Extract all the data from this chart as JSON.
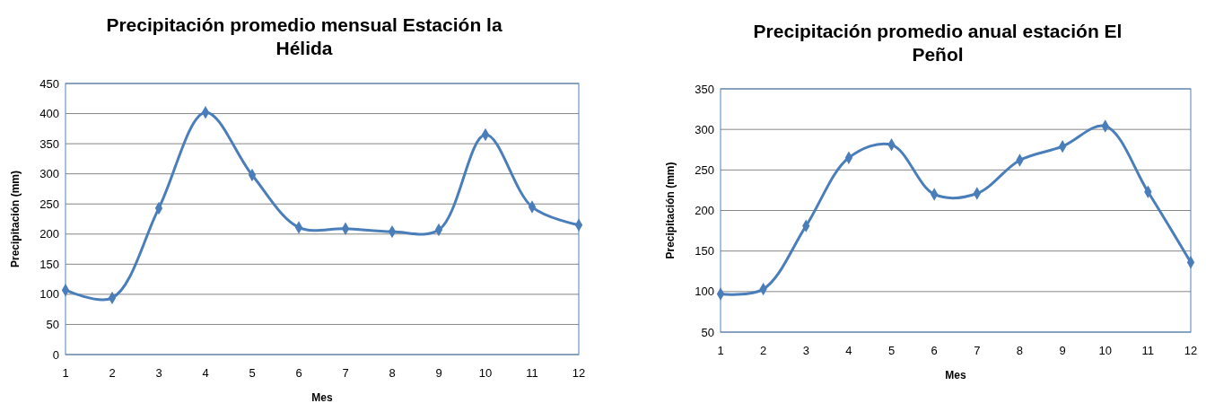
{
  "chart_data": [
    {
      "type": "line",
      "title": "Precipitación promedio mensual Estación la Hélida",
      "xlabel": "Mes",
      "ylabel": "Precipitación (mm)",
      "x": [
        1,
        2,
        3,
        4,
        5,
        6,
        7,
        8,
        9,
        10,
        11,
        12
      ],
      "series": [
        {
          "color": "#4a7ebb",
          "values": [
            107,
            94,
            243,
            402,
            298,
            211,
            209,
            204,
            207,
            365,
            245,
            215
          ]
        }
      ],
      "xlim": [
        1,
        12
      ],
      "xticks": [
        1,
        2,
        3,
        4,
        5,
        6,
        7,
        8,
        9,
        10,
        11,
        12
      ],
      "ylim": [
        0,
        450
      ],
      "yticks": [
        0,
        50,
        100,
        150,
        200,
        250,
        300,
        350,
        400,
        450
      ],
      "grid": "y",
      "marker": "diamond",
      "line_style": "solid"
    },
    {
      "type": "line",
      "title": "Precipitación promedio anual estación El Peñol",
      "xlabel": "Mes",
      "ylabel": "Precipitación (mm)",
      "x": [
        1,
        2,
        3,
        4,
        5,
        6,
        7,
        8,
        9,
        10,
        11,
        12
      ],
      "series": [
        {
          "color": "#4a7ebb",
          "values": [
            97,
            103,
            181,
            265,
            281,
            220,
            221,
            262,
            279,
            304,
            223,
            136
          ]
        }
      ],
      "xlim": [
        1,
        12
      ],
      "xticks": [
        1,
        2,
        3,
        4,
        5,
        6,
        7,
        8,
        9,
        10,
        11,
        12
      ],
      "ylim": [
        50,
        350
      ],
      "yticks": [
        50,
        100,
        150,
        200,
        250,
        300,
        350
      ],
      "grid": "y",
      "marker": "diamond",
      "line_style": "solid"
    }
  ]
}
